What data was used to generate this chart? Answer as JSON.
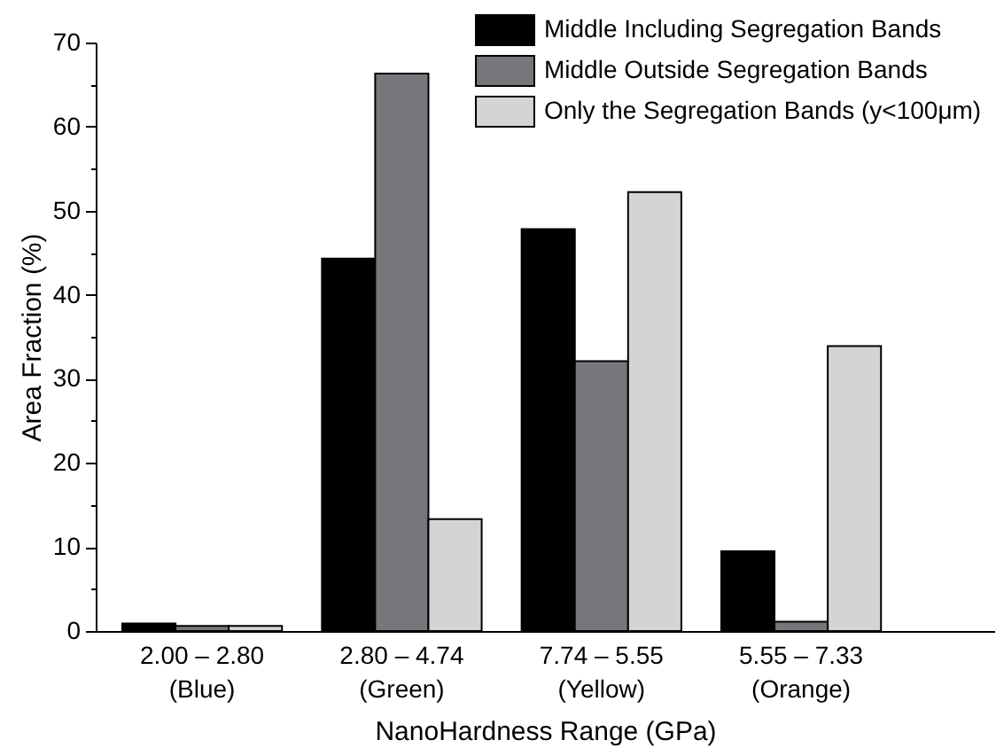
{
  "chart_data": {
    "type": "bar",
    "xlabel": "NanoHardness Range (GPa)",
    "ylabel": "Area Fraction (%)",
    "categories": [
      "2.00 – 2.80\n(Blue)",
      "2.80 – 4.74\n(Green)",
      "7.74 – 5.55\n(Yellow)",
      "5.55 – 7.33\n(Orange)"
    ],
    "series": [
      {
        "name": "Middle Including Segregation Bands",
        "color": "#000000",
        "values": [
          0.9,
          44.3,
          47.8,
          9.5
        ]
      },
      {
        "name": "Middle Outside Segregation Bands",
        "color": "#76777b",
        "values": [
          0.6,
          66.3,
          32.1,
          1.1
        ]
      },
      {
        "name": "Only the Segregation Bands (y<100μm)",
        "color": "#d4d4d4",
        "values": [
          0.6,
          13.3,
          52.2,
          33.9
        ]
      }
    ],
    "ylim": [
      0,
      70
    ],
    "yticks": [
      0,
      {
        "value": 5,
        "label": null
      },
      10,
      {
        "value": 15,
        "label": null
      },
      20,
      {
        "value": 25,
        "label": null
      },
      30,
      {
        "value": 35,
        "label": null
      },
      40,
      {
        "value": 45,
        "label": null
      },
      50,
      {
        "value": 55,
        "label": null
      },
      60,
      {
        "value": 65,
        "label": null
      },
      70
    ],
    "legend": "top right"
  }
}
